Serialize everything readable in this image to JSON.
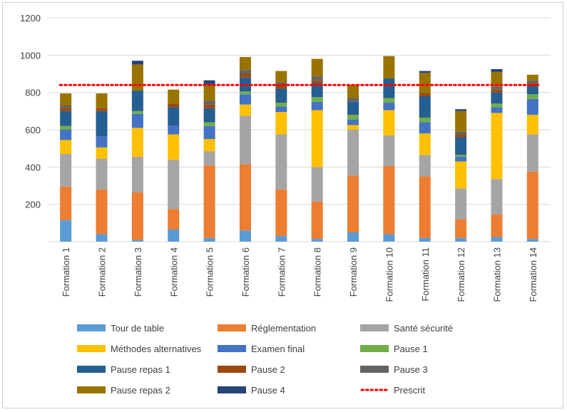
{
  "chart_data": {
    "type": "bar",
    "stacked": true,
    "categories": [
      "Formation 1",
      "Formation 2",
      "Formation 3",
      "Formation 4",
      "Formation 5",
      "Formation 6",
      "Formation 7",
      "Formation 8",
      "Formation 9",
      "Formation 10",
      "Formation 11",
      "Formation 12",
      "Formation 13",
      "Formation 14"
    ],
    "ylim": [
      0,
      1200
    ],
    "yticks": [
      200,
      400,
      600,
      800,
      1000,
      1200
    ],
    "grid": true,
    "legend_position": "bottom",
    "series": [
      {
        "name": "Tour de table",
        "color": "#5B9BD5",
        "values": [
          115,
          40,
          10,
          65,
          20,
          60,
          30,
          15,
          50,
          40,
          20,
          20,
          25,
          15
        ]
      },
      {
        "name": "Réglementation",
        "color": "#ED7D31",
        "values": [
          180,
          240,
          255,
          110,
          390,
          355,
          250,
          200,
          305,
          365,
          330,
          100,
          120,
          360
        ]
      },
      {
        "name": "Santé sécurité",
        "color": "#A5A5A5",
        "values": [
          175,
          165,
          190,
          265,
          75,
          260,
          295,
          185,
          245,
          165,
          115,
          165,
          190,
          200
        ]
      },
      {
        "name": "Méthodes alternatives",
        "color": "#FFC000",
        "values": [
          75,
          60,
          155,
          135,
          65,
          60,
          120,
          305,
          25,
          135,
          115,
          145,
          355,
          105
        ]
      },
      {
        "name": "Examen final",
        "color": "#4472C4",
        "values": [
          55,
          60,
          75,
          45,
          70,
          55,
          30,
          45,
          30,
          40,
          60,
          25,
          30,
          85
        ]
      },
      {
        "name": "Pause 1",
        "color": "#70AD47",
        "values": [
          20,
          0,
          15,
          0,
          20,
          15,
          20,
          25,
          25,
          25,
          25,
          10,
          20,
          25
        ]
      },
      {
        "name": "Pause repas 1",
        "color": "#255E91",
        "values": [
          80,
          135,
          110,
          100,
          75,
          75,
          75,
          75,
          70,
          105,
          115,
          95,
          60,
          45
        ]
      },
      {
        "name": "Pause 2",
        "color": "#9E480E",
        "values": [
          15,
          15,
          0,
          20,
          20,
          20,
          15,
          15,
          0,
          0,
          15,
          15,
          15,
          15
        ]
      },
      {
        "name": "Pause 3",
        "color": "#636363",
        "values": [
          15,
          0,
          0,
          0,
          20,
          20,
          20,
          20,
          20,
          0,
          0,
          15,
          15,
          15
        ]
      },
      {
        "name": "Pause repas 2",
        "color": "#997300",
        "values": [
          65,
          80,
          140,
          75,
          90,
          70,
          60,
          95,
          70,
          120,
          110,
          110,
          80,
          30
        ]
      },
      {
        "name": "Pause 4",
        "color": "#264478",
        "values": [
          0,
          0,
          20,
          0,
          20,
          0,
          0,
          0,
          0,
          0,
          10,
          10,
          15,
          0
        ]
      }
    ],
    "reference_line": {
      "name": "Prescrit",
      "value": 840,
      "color": "#FF0000",
      "style": "dotted"
    }
  }
}
